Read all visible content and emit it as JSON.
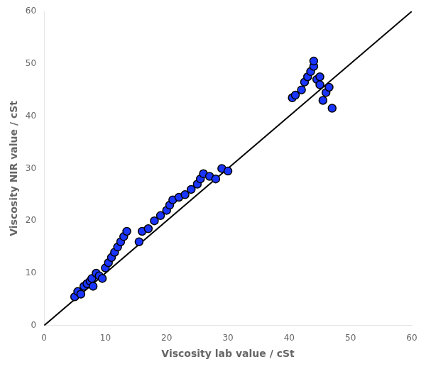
{
  "chart_data": {
    "type": "scatter",
    "xlabel": "Viscosity lab value / cSt",
    "ylabel": "Viscosity NIR value / cSt",
    "xlim": [
      0,
      60
    ],
    "ylim": [
      0,
      60
    ],
    "xticks": [
      0,
      10,
      20,
      30,
      40,
      50,
      60
    ],
    "yticks": [
      0,
      10,
      20,
      30,
      40,
      50,
      60
    ],
    "grid": false,
    "series": [
      {
        "type": "line",
        "color": "#000000",
        "x": [
          0,
          60
        ],
        "values": [
          0,
          60
        ]
      },
      {
        "type": "scatter",
        "color": "#1A35FF",
        "x": [
          5.0,
          5.5,
          6.0,
          6.5,
          7.0,
          7.5,
          7.8,
          8.0,
          8.5,
          9.0,
          9.5,
          10.0,
          10.5,
          11.0,
          11.5,
          12.0,
          12.5,
          13.0,
          13.5,
          15.5,
          16.0,
          17.0,
          18.0,
          19.0,
          20.0,
          20.5,
          21.0,
          22.0,
          23.0,
          24.0,
          25.0,
          25.5,
          26.0,
          27.0,
          28.0,
          29.0,
          30.0,
          40.5,
          41.0,
          42.0,
          42.5,
          43.0,
          43.5,
          44.0,
          44.0,
          44.5,
          45.0,
          45.0,
          45.5,
          46.0,
          46.5,
          47.0
        ],
        "values": [
          5.5,
          6.5,
          6.0,
          7.5,
          8.0,
          8.5,
          9.0,
          7.5,
          10.0,
          9.5,
          9.0,
          11.0,
          12.0,
          13.0,
          14.0,
          15.0,
          16.0,
          17.0,
          18.0,
          16.0,
          18.0,
          18.5,
          20.0,
          21.0,
          22.0,
          23.0,
          24.0,
          24.5,
          25.0,
          26.0,
          27.0,
          28.0,
          29.0,
          28.5,
          28.0,
          30.0,
          29.5,
          43.5,
          44.0,
          45.0,
          46.5,
          47.5,
          48.5,
          49.5,
          50.5,
          47.0,
          46.0,
          47.5,
          43.0,
          44.5,
          45.5,
          41.5
        ]
      }
    ]
  }
}
